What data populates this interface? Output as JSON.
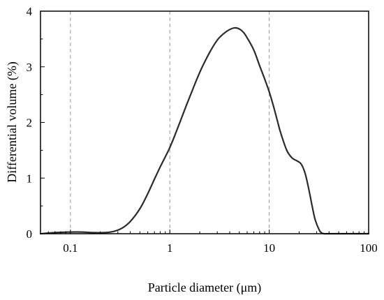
{
  "chart_data": {
    "type": "line",
    "title": "",
    "xlabel": "Particle diameter (μm)",
    "ylabel": "Differential volume (%)",
    "xscale": "log",
    "xlim": [
      0.05,
      100
    ],
    "ylim": [
      0,
      4
    ],
    "x_ticks": [
      0.1,
      1,
      10,
      100
    ],
    "x_tick_labels": [
      "0.1",
      "1",
      "10",
      "100"
    ],
    "y_ticks": [
      0,
      1,
      2,
      3,
      4
    ],
    "y_tick_labels": [
      "0",
      "1",
      "2",
      "3",
      "4"
    ],
    "grid": "vertical dashed lines at x = 0.1, 1, 10",
    "line_color": "#2b2b2b",
    "series": [
      {
        "x": [
          0.05,
          0.07,
          0.1,
          0.13,
          0.17,
          0.22,
          0.27,
          0.33,
          0.4,
          0.5,
          0.6,
          0.7,
          0.8,
          1.0,
          1.2,
          1.5,
          2.0,
          2.5,
          3.0,
          3.5,
          4.0,
          4.5,
          5.0,
          5.5,
          6.0,
          7.0,
          8.0,
          9.0,
          10,
          11,
          12,
          13,
          15,
          17,
          19,
          21,
          23,
          25,
          27,
          29,
          32,
          34,
          36,
          40,
          50,
          70,
          100
        ],
        "y": [
          0.0,
          0.02,
          0.03,
          0.03,
          0.02,
          0.02,
          0.04,
          0.1,
          0.22,
          0.45,
          0.72,
          0.98,
          1.2,
          1.55,
          1.9,
          2.35,
          2.9,
          3.25,
          3.48,
          3.6,
          3.67,
          3.7,
          3.68,
          3.62,
          3.52,
          3.3,
          3.02,
          2.78,
          2.55,
          2.3,
          2.05,
          1.82,
          1.5,
          1.36,
          1.31,
          1.25,
          1.08,
          0.8,
          0.5,
          0.25,
          0.06,
          0.01,
          0.0,
          0.0,
          0.0,
          0.0,
          0.0
        ]
      }
    ]
  }
}
